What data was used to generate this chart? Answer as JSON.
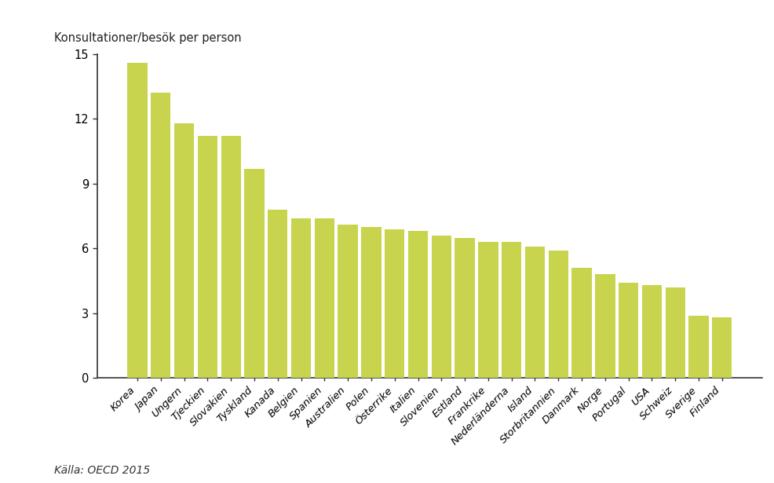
{
  "categories": [
    "Korea",
    "Japan",
    "Ungern",
    "Tjeckien",
    "Slovakien",
    "Tyskland",
    "Kanada",
    "Belgien",
    "Spanien",
    "Australien",
    "Polen",
    "Österrike",
    "Italien",
    "Slovenien",
    "Estland",
    "Frankrike",
    "Nederländerna",
    "Island",
    "Storbritannien",
    "Danmark",
    "Norge",
    "Portugal",
    "USA",
    "Schweiz",
    "Sverige",
    "Finland"
  ],
  "values": [
    14.6,
    13.2,
    11.8,
    11.2,
    11.2,
    9.7,
    7.8,
    7.4,
    7.4,
    7.1,
    7.0,
    6.9,
    6.8,
    6.6,
    6.5,
    6.3,
    6.3,
    6.1,
    5.9,
    5.1,
    4.8,
    4.4,
    4.3,
    4.2,
    2.9,
    2.8
  ],
  "bar_color": "#c8d44e",
  "ylabel": "Konsultationer/besök per person",
  "ylim": [
    0,
    15
  ],
  "yticks": [
    0,
    3,
    6,
    9,
    12,
    15
  ],
  "source": "Källa: OECD 2015",
  "background_color": "#ffffff"
}
